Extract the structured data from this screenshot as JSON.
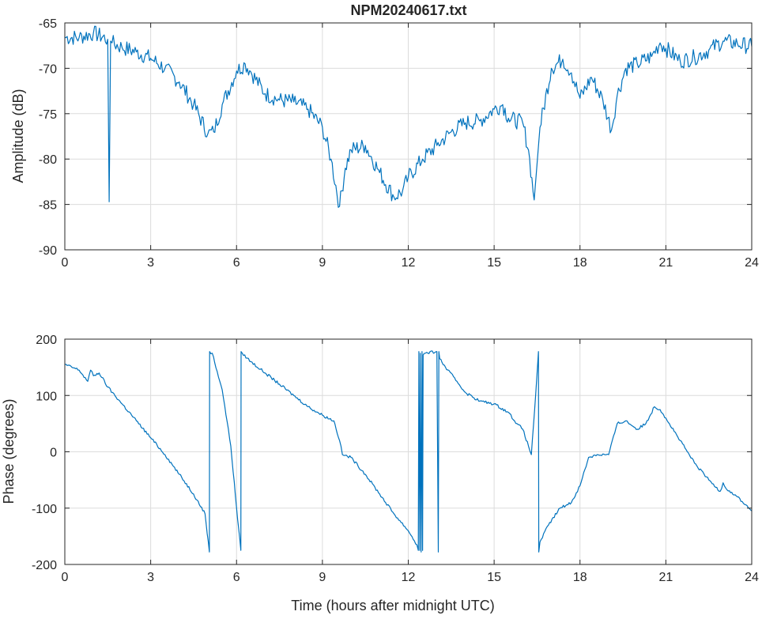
{
  "colors": {
    "series": "#0072BD",
    "axis": "#262626",
    "grid": "#dcdcdc"
  },
  "chart_data": [
    {
      "type": "line",
      "title": "NPM20240617.txt",
      "xlabel": "",
      "ylabel": "Amplitude (dB)",
      "xlim": [
        0,
        24
      ],
      "ylim": [
        -90,
        -65
      ],
      "xticks": [
        0,
        3,
        6,
        9,
        12,
        15,
        18,
        21,
        24
      ],
      "yticks": [
        -90,
        -85,
        -80,
        -75,
        -70,
        -65
      ],
      "xtick_labels": [
        "0",
        "3",
        "6",
        "9",
        "12",
        "15",
        "18",
        "21",
        "24"
      ],
      "ytick_labels": [
        "-90",
        "-85",
        "-80",
        "-75",
        "-70",
        "-65"
      ],
      "grid": true,
      "series": [
        {
          "x": [
            0,
            0.5,
            1.0,
            1.5,
            1.55,
            1.6,
            1.65,
            2,
            2.5,
            3,
            3.5,
            4,
            4.5,
            5,
            5.2,
            5.5,
            6,
            6.3,
            6.5,
            7,
            7.5,
            8,
            8.5,
            9,
            9.3,
            9.6,
            9.8,
            10,
            10.5,
            11,
            11.5,
            11.8,
            12,
            12.5,
            13,
            13.5,
            14,
            14.5,
            15,
            15.3,
            15.5,
            16,
            16.2,
            16.4,
            16.6,
            17,
            17.4,
            17.7,
            18,
            18.4,
            18.8,
            19.1,
            19.3,
            19.6,
            20,
            20.5,
            20.8,
            21,
            21.5,
            22,
            22.5,
            23,
            23.5,
            24
          ],
          "y": [
            -66.6,
            -66.6,
            -66.1,
            -66.8,
            -84.7,
            -67.0,
            -67.2,
            -67.7,
            -68.2,
            -68.9,
            -70.0,
            -71.5,
            -74.0,
            -77.2,
            -77.0,
            -74.0,
            -70.3,
            -69.5,
            -70.4,
            -72.8,
            -73.5,
            -73.7,
            -74.5,
            -76.5,
            -80.0,
            -85.2,
            -81.0,
            -79.0,
            -78.5,
            -81.5,
            -84.2,
            -83.5,
            -82.0,
            -80.0,
            -78.5,
            -77.0,
            -76.0,
            -75.8,
            -74.5,
            -74.0,
            -75.5,
            -76.0,
            -79.0,
            -84.5,
            -76.5,
            -70.0,
            -69.0,
            -70.5,
            -73.3,
            -71.0,
            -73.5,
            -76.8,
            -73.0,
            -70.0,
            -69.5,
            -68.7,
            -67.2,
            -67.8,
            -69.2,
            -68.8,
            -68.0,
            -67.0,
            -67.3,
            -67.6
          ]
        }
      ]
    },
    {
      "type": "line",
      "title": "",
      "xlabel": "Time (hours after midnight UTC)",
      "ylabel": "Phase (degrees)",
      "xlim": [
        0,
        24
      ],
      "ylim": [
        -200,
        200
      ],
      "xticks": [
        0,
        3,
        6,
        9,
        12,
        15,
        18,
        21,
        24
      ],
      "yticks": [
        -200,
        -100,
        0,
        100,
        200
      ],
      "xtick_labels": [
        "0",
        "3",
        "6",
        "9",
        "12",
        "15",
        "18",
        "21",
        "24"
      ],
      "ytick_labels": [
        "-200",
        "-100",
        "0",
        "100",
        "200"
      ],
      "grid": true,
      "series": [
        {
          "x": [
            0,
            0.5,
            0.8,
            0.9,
            1.0,
            1.2,
            1.5,
            2,
            2.5,
            3,
            3.5,
            4,
            4.5,
            4.9,
            5.05,
            5.06,
            5.15,
            5.5,
            5.8,
            6.0,
            6.15,
            6.16,
            6.2,
            6.5,
            7,
            7.5,
            8,
            8.5,
            9,
            9.4,
            9.6,
            9.7,
            10,
            10.5,
            11,
            11.5,
            12,
            12.3,
            12.35,
            12.37,
            12.4,
            12.42,
            12.45,
            12.48,
            12.5,
            12.52,
            12.6,
            13.0,
            13.05,
            13.07,
            13.1,
            13.3,
            13.7,
            14,
            14.5,
            15,
            15.5,
            15.8,
            16.0,
            16.2,
            16.3,
            16.45,
            16.55,
            16.56,
            16.6,
            16.9,
            17.3,
            17.7,
            18,
            18.3,
            18.6,
            19,
            19.3,
            19.6,
            20,
            20.3,
            20.6,
            20.8,
            21,
            21.5,
            22,
            22.5,
            22.9,
            23.0,
            23.1,
            23.5,
            24
          ],
          "y": [
            155,
            145,
            125,
            145,
            135,
            140,
            115,
            85,
            55,
            25,
            -5,
            -40,
            -75,
            -110,
            -178,
            178,
            175,
            110,
            10,
            -100,
            -175,
            178,
            175,
            160,
            140,
            120,
            100,
            80,
            65,
            55,
            20,
            -5,
            -10,
            -40,
            -75,
            -110,
            -140,
            -165,
            -175,
            178,
            -175,
            175,
            -178,
            178,
            -175,
            172,
            175,
            178,
            -178,
            178,
            165,
            150,
            125,
            105,
            90,
            85,
            70,
            50,
            40,
            10,
            -5,
            100,
            178,
            -178,
            -160,
            -130,
            -100,
            -90,
            -60,
            -10,
            -5,
            -5,
            50,
            55,
            40,
            50,
            80,
            75,
            60,
            20,
            -20,
            -50,
            -70,
            -55,
            -65,
            -80,
            -105
          ]
        }
      ]
    }
  ]
}
